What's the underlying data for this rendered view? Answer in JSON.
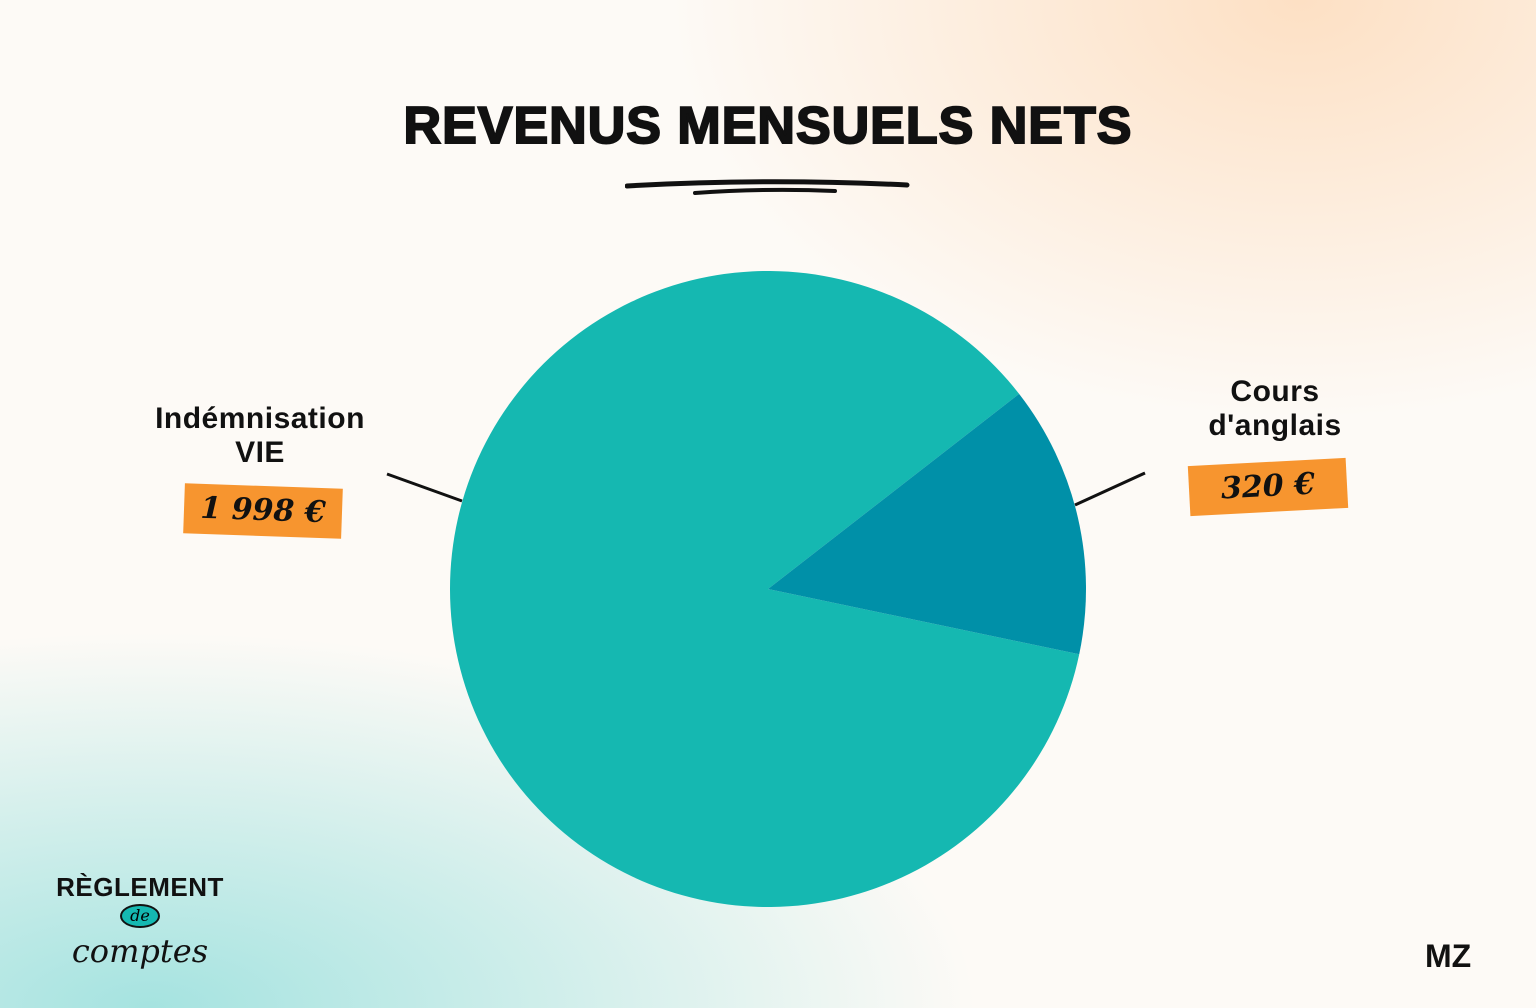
{
  "chart_data": {
    "type": "pie",
    "title": "REVENUS MENSUELS NETS",
    "slices": [
      {
        "label": "Indémnisation VIE",
        "label_lines": [
          "Indémnisation",
          "VIE"
        ],
        "value": 1998,
        "value_label": "1 998 €",
        "color": "#15b8b1"
      },
      {
        "label": "Cours d'anglais",
        "label_lines": [
          "Cours",
          "d'anglais"
        ],
        "value": 320,
        "value_label": "320 €",
        "color": "#0090a8"
      }
    ],
    "legend": "none"
  },
  "branding": {
    "logo_left": "RÈGLEMENT de comptes",
    "logo_left_parts": [
      "RÈGLEMENT",
      "de",
      "comptes"
    ],
    "logo_right": "MZ"
  },
  "colors": {
    "tag": "#f7952f"
  }
}
